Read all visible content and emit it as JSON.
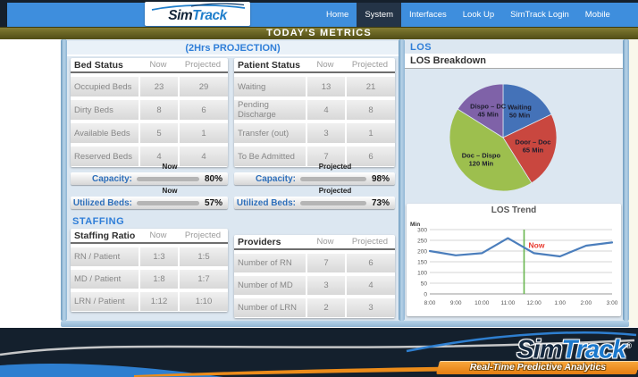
{
  "topbar": {
    "logo": {
      "sim": "Sim",
      "track": "Track"
    },
    "nav": [
      {
        "label": "Home",
        "active": false
      },
      {
        "label": "System",
        "active": true
      },
      {
        "label": "Interfaces",
        "active": false
      },
      {
        "label": "Look Up",
        "active": false
      },
      {
        "label": "SimTrack Login",
        "active": false
      },
      {
        "label": "Mobile",
        "active": false
      }
    ]
  },
  "metrics_band": {
    "title": "TODAY'S METRICS"
  },
  "projection": {
    "title": "(2Hrs PROJECTION)",
    "bed_status": {
      "header": [
        "Bed Status",
        "Now",
        "Projected"
      ],
      "rows": [
        [
          "Occupied Beds",
          "23",
          "29"
        ],
        [
          "Dirty Beds",
          "8",
          "6"
        ],
        [
          "Available Beds",
          "5",
          "1"
        ],
        [
          "Reserved Beds",
          "4",
          "4"
        ]
      ]
    },
    "patient_status": {
      "header": [
        "Patient Status",
        "Now",
        "Projected"
      ],
      "rows": [
        [
          "Waiting",
          "13",
          "21"
        ],
        [
          "Pending Discharge",
          "4",
          "8"
        ],
        [
          "Transfer (out)",
          "3",
          "1"
        ],
        [
          "To Be Admitted",
          "7",
          "6"
        ]
      ]
    },
    "gauges": [
      {
        "context": "Now",
        "label": "Capacity:",
        "value": 80,
        "display": "80%",
        "color": "#fcf400"
      },
      {
        "context": "Now",
        "label": "Utilized Beds:",
        "value": 57,
        "display": "57%",
        "color": "#3ea63a"
      },
      {
        "context": "Projected",
        "label": "Capacity:",
        "value": 98,
        "display": "98%",
        "color": "#ef4f46"
      },
      {
        "context": "Projected",
        "label": "Utilized Beds:",
        "value": 73,
        "display": "73%",
        "color": "#fcf400"
      }
    ]
  },
  "staffing": {
    "title": "STAFFING",
    "staffing_ratio": {
      "header": [
        "Staffing Ratio",
        "Now",
        "Projected"
      ],
      "rows": [
        [
          "RN / Patient",
          "1:3",
          "1:5"
        ],
        [
          "MD / Patient",
          "1:8",
          "1:7"
        ],
        [
          "LRN / Patient",
          "1:12",
          "1:10"
        ]
      ]
    },
    "providers": {
      "header": [
        "Providers",
        "Now",
        "Projected"
      ],
      "rows": [
        [
          "Number of RN",
          "7",
          "6"
        ],
        [
          "Number of MD",
          "3",
          "4"
        ],
        [
          "Number of LRN",
          "2",
          "3"
        ]
      ]
    }
  },
  "los": {
    "title": "LOS",
    "breakdown_title": "LOS Breakdown"
  },
  "chart_data": [
    {
      "type": "pie",
      "title": "LOS Breakdown",
      "unit": "Min",
      "slices": [
        {
          "label": "Waiting",
          "value": 50,
          "color": "#4472b8"
        },
        {
          "label": "Door – Doc",
          "value": 65,
          "color": "#c9473f"
        },
        {
          "label": "Doc – Dispo",
          "value": 120,
          "color": "#9dbf4e"
        },
        {
          "label": "Dispo – DC",
          "value": 45,
          "color": "#7f62a8"
        }
      ]
    },
    {
      "type": "line",
      "title": "LOS Trend",
      "ylabel": "Min",
      "ylim": [
        0,
        300
      ],
      "yticks": [
        0,
        50,
        100,
        150,
        200,
        250,
        300
      ],
      "categories": [
        "8:00",
        "9:00",
        "10:00",
        "11:00",
        "12:00",
        "1:00",
        "2:00",
        "3:00"
      ],
      "values": [
        200,
        180,
        190,
        260,
        190,
        175,
        225,
        240
      ],
      "line_color": "#4b7ebc",
      "now_marker": {
        "x": 3.62,
        "label": "Now",
        "line_color": "#68b64e",
        "label_color": "#e8392e"
      }
    }
  ],
  "footer": {
    "logo_sim": "Sim",
    "logo_track": "Track",
    "reg": "®",
    "tagline": "Real-Time Predictive Analytics"
  }
}
